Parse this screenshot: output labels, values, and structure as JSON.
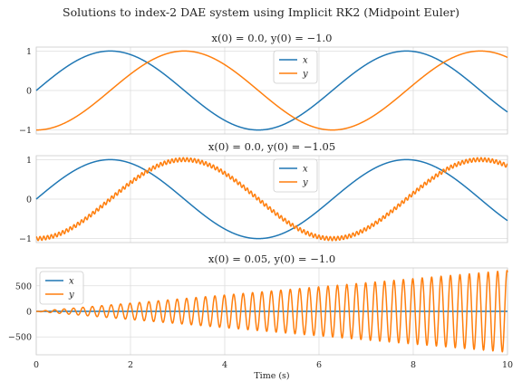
{
  "figure": {
    "title": "Solutions to index-2 DAE system using Implicit RK2 (Midpoint Euler)",
    "xlabel": "Time (s)"
  },
  "colors": {
    "x": "#1f77b4",
    "y": "#ff7f0e",
    "grid": "#dddddd",
    "background": "#ffffff"
  },
  "chart_data": [
    {
      "type": "line",
      "title": "x(0) = 0.0, y(0) = −1.0",
      "xlim": [
        0,
        10
      ],
      "ylim": [
        -1.1,
        1.1
      ],
      "x_ticks": [
        0,
        2,
        4,
        6,
        8,
        10
      ],
      "y_ticks": [
        -1,
        0,
        1
      ],
      "x_tick_labels": [
        "0",
        "2",
        "4",
        "6",
        "8",
        "10"
      ],
      "y_tick_labels": [
        "−1",
        "0",
        "1"
      ],
      "legend": "top-center",
      "series": [
        {
          "name": "x",
          "formula": "sin(t)"
        },
        {
          "name": "y",
          "formula": "-cos(t)"
        }
      ]
    },
    {
      "type": "line",
      "title": "x(0) = 0.0, y(0) = −1.05",
      "xlim": [
        0,
        10
      ],
      "ylim": [
        -1.1,
        1.1
      ],
      "x_ticks": [
        0,
        2,
        4,
        6,
        8,
        10
      ],
      "y_ticks": [
        -1,
        0,
        1
      ],
      "x_tick_labels": [
        "0",
        "2",
        "4",
        "6",
        "8",
        "10"
      ],
      "y_tick_labels": [
        "−1",
        "0",
        "1"
      ],
      "legend": "top-center",
      "series": [
        {
          "name": "x",
          "formula": "sin(t)"
        },
        {
          "name": "y",
          "formula": "-cos(t)",
          "oscillation_amplitude": 0.05
        }
      ]
    },
    {
      "type": "line",
      "title": "x(0) = 0.05, y(0) = −1.0",
      "xlim": [
        0,
        10
      ],
      "ylim": [
        -850,
        850
      ],
      "x_ticks": [
        0,
        2,
        4,
        6,
        8,
        10
      ],
      "y_ticks": [
        -500,
        0,
        500
      ],
      "x_tick_labels": [
        "0",
        "2",
        "4",
        "6",
        "8",
        "10"
      ],
      "y_tick_labels": [
        "−500",
        "0",
        "500"
      ],
      "legend": "top-left",
      "series": [
        {
          "name": "x",
          "formula": "sin(t)"
        },
        {
          "name": "y",
          "formula": "oscillation with linearly growing envelope",
          "envelope_max": 800
        }
      ]
    }
  ]
}
